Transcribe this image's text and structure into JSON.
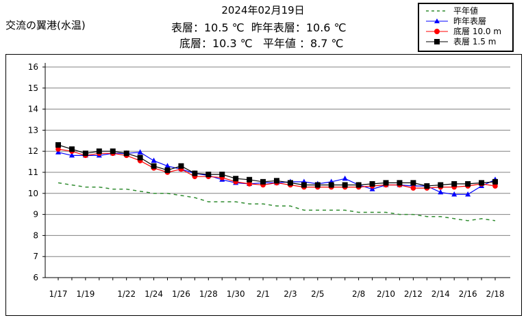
{
  "header": {
    "station": "交流の翼港(水温)",
    "date": "2024年02月19日",
    "line1": "表層：10.5 ℃  昨年表層：10.6 ℃",
    "line2": "底層：10.3 ℃   平年値 ：8.7 ℃"
  },
  "chart_data": {
    "type": "line",
    "title": "",
    "xlabel": "",
    "ylabel": "",
    "ylim": [
      6,
      16
    ],
    "yticks": [
      6,
      7,
      8,
      9,
      10,
      11,
      12,
      13,
      14,
      15,
      16
    ],
    "grid": true,
    "legend_position": "top-right",
    "x": [
      "1/17",
      "1/18",
      "1/19",
      "1/20",
      "1/21",
      "1/22",
      "1/23",
      "1/24",
      "1/25",
      "1/26",
      "1/27",
      "1/28",
      "1/29",
      "1/30",
      "1/31",
      "2/1",
      "2/2",
      "2/3",
      "2/4",
      "2/5",
      "2/6",
      "2/7",
      "2/8",
      "2/9",
      "2/10",
      "2/11",
      "2/12",
      "2/13",
      "2/14",
      "2/15",
      "2/16",
      "2/17",
      "2/18"
    ],
    "xtick_labels": [
      "1/17",
      "1/19",
      "1/22",
      "1/24",
      "1/26",
      "1/28",
      "1/30",
      "2/1",
      "2/3",
      "2/5",
      "2/8",
      "2/10",
      "2/12",
      "2/14",
      "2/16",
      "2/18"
    ],
    "series": [
      {
        "name": "平年値",
        "color": "#2e8b2e",
        "style": "dashed",
        "marker": "none",
        "values": [
          10.5,
          10.4,
          10.3,
          10.3,
          10.2,
          10.2,
          10.1,
          10.0,
          10.0,
          9.9,
          9.8,
          9.6,
          9.6,
          9.6,
          9.5,
          9.5,
          9.4,
          9.4,
          9.2,
          9.2,
          9.2,
          9.2,
          9.1,
          9.1,
          9.1,
          9.0,
          9.0,
          8.9,
          8.9,
          8.8,
          8.7,
          8.8,
          8.7
        ]
      },
      {
        "name": "昨年表層",
        "color": "#0000ff",
        "style": "solid",
        "marker": "triangle",
        "values": [
          11.95,
          11.8,
          11.8,
          11.8,
          11.9,
          11.9,
          11.95,
          11.55,
          11.3,
          11.15,
          10.95,
          10.85,
          10.65,
          10.5,
          10.45,
          10.5,
          10.5,
          10.55,
          10.55,
          10.45,
          10.55,
          10.7,
          10.4,
          10.2,
          10.4,
          10.4,
          10.35,
          10.35,
          10.05,
          9.95,
          9.95,
          10.35,
          10.65
        ]
      },
      {
        "name": "底層 10.0 m",
        "color": "#ff0000",
        "style": "solid",
        "marker": "circle",
        "values": [
          12.1,
          12.0,
          11.8,
          11.9,
          11.9,
          11.8,
          11.55,
          11.2,
          11.0,
          11.15,
          10.8,
          10.8,
          10.75,
          10.55,
          10.45,
          10.4,
          10.5,
          10.4,
          10.3,
          10.3,
          10.3,
          10.3,
          10.3,
          10.35,
          10.4,
          10.4,
          10.25,
          10.25,
          10.3,
          10.3,
          10.35,
          10.45,
          10.35
        ]
      },
      {
        "name": "表層 1.5 m",
        "color": "#000000",
        "style": "solid",
        "marker": "square",
        "values": [
          12.3,
          12.1,
          11.9,
          12.0,
          12.0,
          11.9,
          11.7,
          11.3,
          11.1,
          11.3,
          10.95,
          10.9,
          10.9,
          10.7,
          10.65,
          10.55,
          10.6,
          10.5,
          10.4,
          10.4,
          10.4,
          10.4,
          10.4,
          10.45,
          10.5,
          10.5,
          10.5,
          10.35,
          10.4,
          10.45,
          10.45,
          10.5,
          10.55
        ]
      }
    ]
  }
}
